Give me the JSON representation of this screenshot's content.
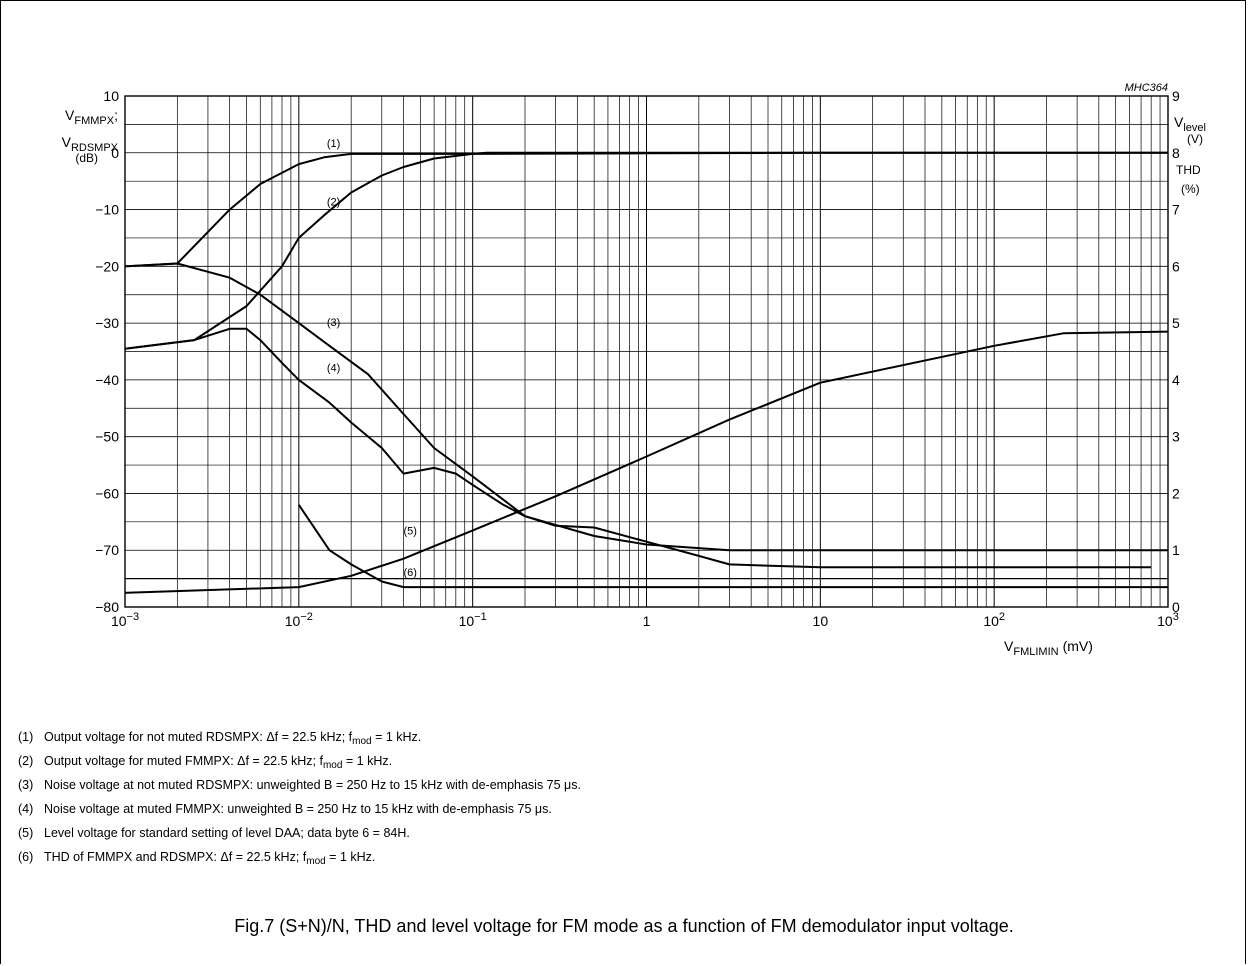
{
  "chart_data": {
    "type": "line",
    "code": "MHC364",
    "x_scale": "log",
    "xlim": [
      0.001,
      1000
    ],
    "x_ticks": [
      {
        "value": 0.001,
        "base": "10",
        "exp": "−3"
      },
      {
        "value": 0.01,
        "base": "10",
        "exp": "−2"
      },
      {
        "value": 0.1,
        "base": "10",
        "exp": "−1"
      },
      {
        "value": 1,
        "base": "1",
        "exp": ""
      },
      {
        "value": 10,
        "base": "10",
        "exp": ""
      },
      {
        "value": 100,
        "base": "10",
        "exp": "2"
      },
      {
        "value": 1000,
        "base": "10",
        "exp": "3"
      }
    ],
    "xlabel": {
      "main": "V",
      "sub": "FMLIMIN",
      "unit": "(mV)"
    },
    "ylim_left": [
      -80,
      10
    ],
    "y_ticks_left": [
      {
        "value": 10,
        "label": "10"
      },
      {
        "value": 0,
        "label": "0"
      },
      {
        "value": -10,
        "label": "−10"
      },
      {
        "value": -20,
        "label": "−20"
      },
      {
        "value": -30,
        "label": "−30"
      },
      {
        "value": -40,
        "label": "−40"
      },
      {
        "value": -50,
        "label": "−50"
      },
      {
        "value": -60,
        "label": "−60"
      },
      {
        "value": -70,
        "label": "−70"
      },
      {
        "value": -80,
        "label": "−80"
      }
    ],
    "ylabel_left": {
      "l1_main": "V",
      "l1_sub": "FMMPX",
      "l1_suffix": ";",
      "l2_main": "V",
      "l2_sub": "RDSMPX",
      "l3": "(dB)"
    },
    "ylim_right": [
      0,
      9
    ],
    "y_ticks_right": [
      "9",
      "8",
      "7",
      "6",
      "5",
      "4",
      "3",
      "2",
      "1",
      "0"
    ],
    "ylabel_right": {
      "l1_main": "V",
      "l1_sub": "level",
      "l2": "(V)",
      "l3": "THD",
      "l4": "(%)"
    },
    "grid": true,
    "series": [
      {
        "name": "(1)",
        "axis": "left",
        "label_at": [
          0.0145,
          1.0
        ],
        "x": [
          0.001,
          0.002,
          0.004,
          0.006,
          0.01,
          0.014,
          0.02,
          0.05,
          0.1,
          1,
          10,
          100,
          1000
        ],
        "y": [
          -20,
          -19.5,
          -10,
          -5.5,
          -2,
          -0.8,
          -0.2,
          -0.2,
          -0.2,
          -0.1,
          0,
          0,
          0
        ]
      },
      {
        "name": "(2)",
        "axis": "left",
        "label_at": [
          0.0145,
          -9.3
        ],
        "x": [
          0.001,
          0.0025,
          0.005,
          0.008,
          0.01,
          0.014,
          0.02,
          0.03,
          0.04,
          0.06,
          0.1,
          0.12,
          1,
          1000
        ],
        "y": [
          -34.5,
          -33,
          -27,
          -20,
          -15,
          -11,
          -7,
          -4,
          -2.5,
          -1,
          -0.2,
          0,
          0,
          0
        ]
      },
      {
        "name": "(3)",
        "axis": "left",
        "label_at": [
          0.0145,
          -30.5
        ],
        "x": [
          0.001,
          0.002,
          0.004,
          0.006,
          0.01,
          0.015,
          0.025,
          0.04,
          0.06,
          0.1,
          0.2,
          0.5,
          1,
          3,
          1000
        ],
        "y": [
          -20,
          -19.5,
          -22,
          -25,
          -30,
          -34,
          -39,
          -46,
          -52,
          -57,
          -64,
          -67.5,
          -69,
          -70,
          -70
        ]
      },
      {
        "name": "(4)",
        "axis": "left",
        "label_at": [
          0.0145,
          -38.5
        ],
        "x": [
          0.001,
          0.0025,
          0.004,
          0.005,
          0.006,
          0.008,
          0.01,
          0.015,
          0.02,
          0.03,
          0.04,
          0.06,
          0.08,
          0.1,
          0.15,
          0.2,
          0.3,
          0.5,
          1,
          2,
          3,
          10,
          800
        ],
        "y": [
          -34.5,
          -33,
          -31,
          -31,
          -33,
          -37,
          -40,
          -44,
          -47.5,
          -52,
          -56.5,
          -55.5,
          -56.5,
          -58.5,
          -62,
          -64,
          -65.7,
          -66,
          -68.5,
          -71,
          -72.5,
          -73,
          -73
        ]
      },
      {
        "name": "(5)",
        "axis": "right",
        "label_at": [
          0.04,
          1.28
        ],
        "x": [
          0.001,
          0.01,
          0.02,
          0.04,
          0.1,
          0.3,
          1,
          3,
          10,
          100,
          250,
          1000
        ],
        "y": [
          0.25,
          0.35,
          0.55,
          0.85,
          1.35,
          1.95,
          2.65,
          3.3,
          3.95,
          4.6,
          4.82,
          4.85
        ]
      },
      {
        "name": "(6)",
        "axis": "left",
        "label_at": [
          0.04,
          -74.5
        ],
        "x": [
          0.01,
          0.015,
          0.02,
          0.03,
          0.04,
          0.1,
          1,
          1000
        ],
        "y": [
          -62,
          -70,
          -72.5,
          -75.5,
          -76.5,
          -76.5,
          -76.5,
          -76.5
        ]
      }
    ],
    "reference_lines": [
      {
        "axis": "left",
        "y": -75
      }
    ]
  },
  "notes": [
    {
      "num": "(1)",
      "text": "Output voltage for not muted RDSMPX: Δf = 22.5 kHz; f",
      "sub": "mod",
      "tail": " = 1 kHz."
    },
    {
      "num": "(2)",
      "text": "Output voltage for muted FMMPX: Δf = 22.5 kHz; f",
      "sub": "mod",
      "tail": " = 1 kHz."
    },
    {
      "num": "(3)",
      "text": "Noise voltage at not muted RDSMPX: unweighted B = 250 Hz to 15 kHz with de-emphasis 75 μs.",
      "sub": "",
      "tail": ""
    },
    {
      "num": "(4)",
      "text": "Noise voltage at muted FMMPX: unweighted B = 250 Hz to 15 kHz with de-emphasis 75 μs.",
      "sub": "",
      "tail": ""
    },
    {
      "num": "(5)",
      "text": "Level voltage for standard setting of level DAA; data byte 6 = 84H.",
      "sub": "",
      "tail": ""
    },
    {
      "num": "(6)",
      "text": "THD of FMMPX and RDSMPX: Δf = 22.5 kHz; f",
      "sub": "mod",
      "tail": " = 1 kHz."
    }
  ],
  "caption": "Fig.7  (S+N)/N, THD and level voltage for FM mode as a function of FM demodulator input voltage."
}
